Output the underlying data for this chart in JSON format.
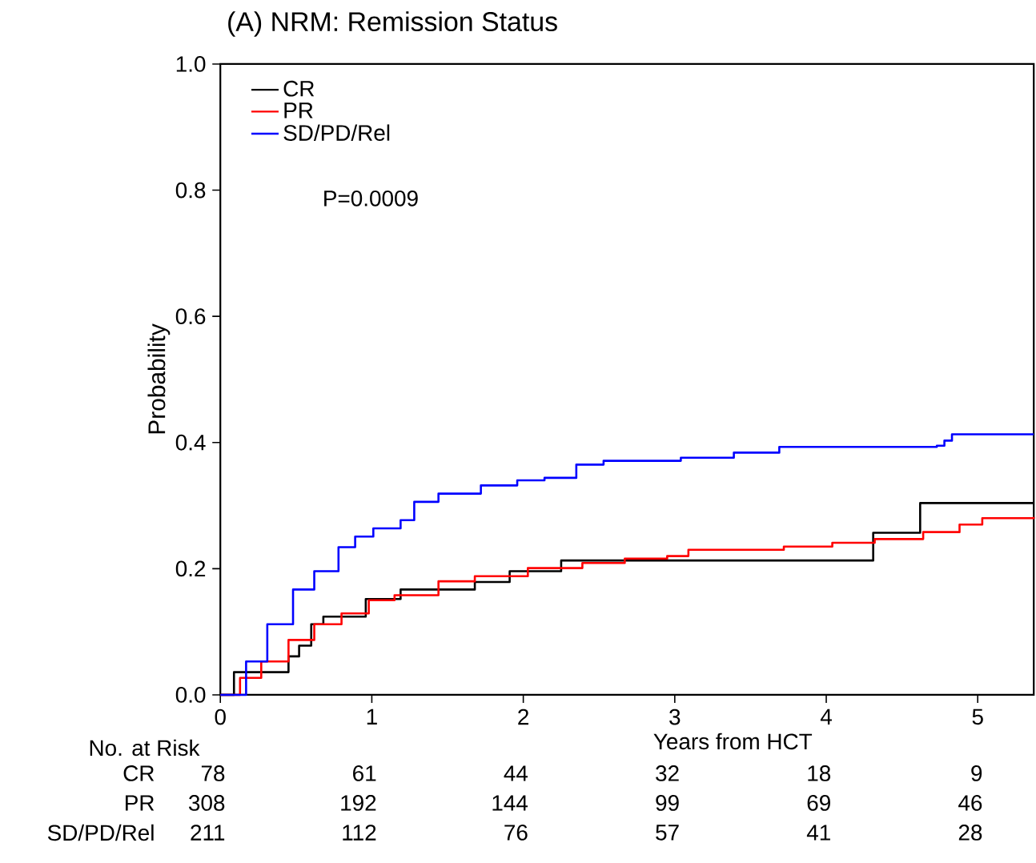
{
  "chart_data": {
    "type": "step",
    "title": "(A) NRM: Remission Status",
    "xlabel": "Years from HCT",
    "ylabel": "Probability",
    "xlim": [
      0,
      5.37
    ],
    "ylim": [
      0,
      1
    ],
    "xticks": [
      0,
      1,
      2,
      3,
      4,
      5
    ],
    "yticks": [
      {
        "value": 0,
        "label": "0.0"
      },
      {
        "value": 0.2,
        "label": "0.2"
      },
      {
        "value": 0.4,
        "label": "0.4"
      },
      {
        "value": 0.6,
        "label": "0.6"
      },
      {
        "value": 0.8,
        "label": "0.8"
      },
      {
        "value": 1,
        "label": "1.0"
      }
    ],
    "legend": "top left",
    "grid": false,
    "series": [
      {
        "name": "CR",
        "color": "#000000",
        "x": [
          0,
          0.09,
          0.45,
          0.52,
          0.6,
          0.68,
          0.96,
          1.19,
          1.68,
          1.91,
          2.25,
          4.31,
          4.62,
          5.37
        ],
        "values": [
          0,
          0.036,
          0.061,
          0.078,
          0.112,
          0.124,
          0.152,
          0.167,
          0.179,
          0.196,
          0.213,
          0.257,
          0.304,
          0.304
        ]
      },
      {
        "name": "PR",
        "color": "#ff0000",
        "x": [
          0,
          0.13,
          0.27,
          0.45,
          0.62,
          0.8,
          0.98,
          1.15,
          1.44,
          1.68,
          2.03,
          2.39,
          2.67,
          2.95,
          3.09,
          3.72,
          4.04,
          4.32,
          4.64,
          4.88,
          5.03,
          5.37
        ],
        "values": [
          0,
          0.027,
          0.053,
          0.087,
          0.112,
          0.129,
          0.15,
          0.158,
          0.18,
          0.188,
          0.201,
          0.209,
          0.216,
          0.22,
          0.23,
          0.235,
          0.241,
          0.247,
          0.258,
          0.27,
          0.28,
          0.282
        ]
      },
      {
        "name": "SD/PD/Rel",
        "color": "#0000ff",
        "x": [
          0,
          0.17,
          0.31,
          0.48,
          0.62,
          0.78,
          0.89,
          1.01,
          1.19,
          1.28,
          1.44,
          1.72,
          1.96,
          2.14,
          2.35,
          2.53,
          3.04,
          3.39,
          3.69,
          4.73,
          4.78,
          4.83,
          5.37
        ],
        "values": [
          0,
          0.053,
          0.112,
          0.167,
          0.196,
          0.234,
          0.251,
          0.264,
          0.277,
          0.306,
          0.319,
          0.332,
          0.34,
          0.344,
          0.365,
          0.371,
          0.376,
          0.384,
          0.393,
          0.395,
          0.403,
          0.413,
          0.413
        ]
      }
    ],
    "annotations": [
      "P=0.0009",
      "No. at Risk",
      "CR",
      "78",
      "61",
      "44",
      "32",
      "18",
      "9",
      "PR",
      "308",
      "192",
      "144",
      "99",
      "69",
      "46",
      "SD/PD/Rel",
      "211",
      "112",
      "76",
      "57",
      "41",
      "28"
    ]
  }
}
